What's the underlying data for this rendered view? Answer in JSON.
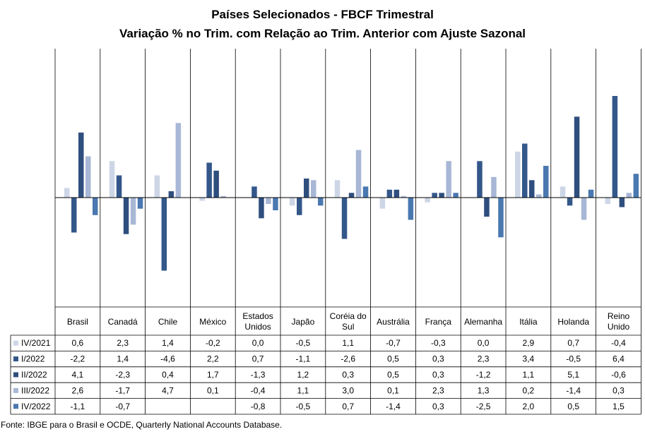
{
  "title": "Países Selecionados - FBCF Trimestral",
  "subtitle": "Variação % no Trim. com Relação ao Trim. Anterior com Ajuste Sazonal",
  "source": "Fonte: IBGE para o Brasil e OCDE, Quarterly National Accounts Database.",
  "chart_data": {
    "type": "bar",
    "title": "Países Selecionados - FBCF Trimestral",
    "subtitle": "Variação % no Trim. com Relação ao Trim. Anterior com Ajuste Sazonal",
    "categories": [
      [
        "Brasil"
      ],
      [
        "Canadá"
      ],
      [
        "Chile"
      ],
      [
        "México"
      ],
      [
        "Estados",
        "Unidos"
      ],
      [
        "Japão"
      ],
      [
        "Coréia do",
        "Sul"
      ],
      [
        "Austrália"
      ],
      [
        "França"
      ],
      [
        "Alemanha"
      ],
      [
        "Itália"
      ],
      [
        "Holanda"
      ],
      [
        "Reino",
        "Unido"
      ]
    ],
    "series": [
      {
        "name": "IV/2021",
        "color": "#cdd6e6",
        "values": [
          0.6,
          2.3,
          1.4,
          -0.2,
          0.0,
          -0.5,
          1.1,
          -0.7,
          -0.3,
          0.0,
          2.9,
          0.7,
          -0.4
        ],
        "labels": [
          "0,6",
          "2,3",
          "1,4",
          "-0,2",
          "0,0",
          "-0,5",
          "1,1",
          "-0,7",
          "-0,3",
          "0,0",
          "2,9",
          "0,7",
          "-0,4"
        ]
      },
      {
        "name": "I/2022",
        "color": "#34578a",
        "values": [
          -2.2,
          1.4,
          -4.6,
          2.2,
          0.7,
          -1.1,
          -2.6,
          0.5,
          0.3,
          2.3,
          3.4,
          -0.5,
          6.4
        ],
        "labels": [
          "-2,2",
          "1,4",
          "-4,6",
          "2,2",
          "0,7",
          "-1,1",
          "-2,6",
          "0,5",
          "0,3",
          "2,3",
          "3,4",
          "-0,5",
          "6,4"
        ]
      },
      {
        "name": "II/2022",
        "color": "#2e4e7e",
        "values": [
          4.1,
          -2.3,
          0.4,
          1.7,
          -1.3,
          1.2,
          0.3,
          0.5,
          0.3,
          -1.2,
          1.1,
          5.1,
          -0.6
        ],
        "labels": [
          "4,1",
          "-2,3",
          "0,4",
          "1,7",
          "-1,3",
          "1,2",
          "0,3",
          "0,5",
          "0,3",
          "-1,2",
          "1,1",
          "5,1",
          "-0,6"
        ]
      },
      {
        "name": "III/2022",
        "color": "#a8b7d5",
        "values": [
          2.6,
          -1.7,
          4.7,
          0.1,
          -0.4,
          1.1,
          3.0,
          0.1,
          2.3,
          1.3,
          0.2,
          -1.4,
          0.3
        ],
        "labels": [
          "2,6",
          "-1,7",
          "4,7",
          "0,1",
          "-0,4",
          "1,1",
          "3,0",
          "0,1",
          "2,3",
          "1,3",
          "0,2",
          "-1,4",
          "0,3"
        ]
      },
      {
        "name": "IV/2022",
        "color": "#4a78b0",
        "values": [
          -1.1,
          -0.7,
          null,
          null,
          -0.8,
          -0.5,
          0.7,
          -1.4,
          0.3,
          -2.5,
          2.0,
          0.5,
          1.5
        ],
        "labels": [
          "-1,1",
          "-0,7",
          "",
          "",
          "-0,8",
          "-0,5",
          "0,7",
          "-1,4",
          "0,3",
          "-2,5",
          "2,0",
          "0,5",
          "1,5"
        ]
      }
    ],
    "ylim": [
      -4.6,
      6.4
    ],
    "grid": false,
    "legend": "data-table"
  }
}
